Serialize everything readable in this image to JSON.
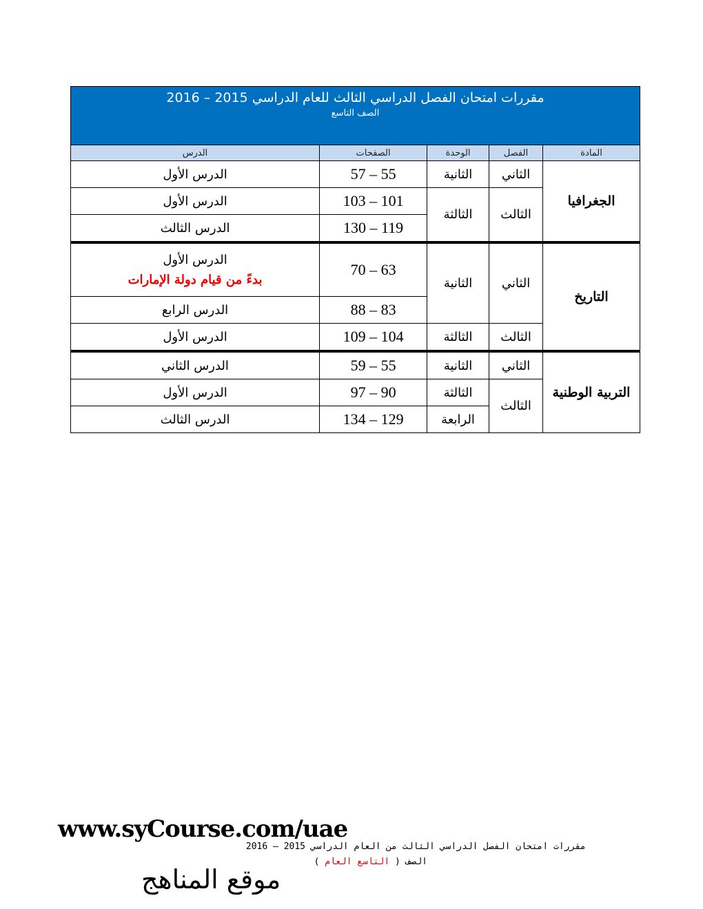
{
  "header": {
    "title": "مقررات امتحان الفصل الدراسي الثالث للعام الدراسي 2015 – 2016",
    "grade": "الصف التاسع"
  },
  "columns": [
    "المادة",
    "الفصل",
    "الوحدة",
    "الصفحات",
    "الدرس"
  ],
  "geo": {
    "subject": "الجغرافيا",
    "r1": {
      "term": "الثاني",
      "unit": "الثانية",
      "pages": "57 – 55",
      "lesson": "الدرس الأول"
    },
    "term2": "الثالث",
    "unit2": "الثالثة",
    "r2": {
      "pages": "103 – 101",
      "lesson": "الدرس الأول"
    },
    "r3": {
      "pages": "130 – 119",
      "lesson": "الدرس الثالث"
    }
  },
  "hist": {
    "subject": "التاريخ",
    "term1": "الثاني",
    "unit1": "الثانية",
    "r1": {
      "pages": "70 – 63",
      "lesson": "الدرس الأول",
      "note": "بدءً من قيام دولة الإمارات"
    },
    "r2": {
      "pages": "88 – 83",
      "lesson": "الدرس الرابع"
    },
    "r3": {
      "term": "الثالث",
      "unit": "الثالثة",
      "pages": "109 – 104",
      "lesson": "الدرس الأول"
    }
  },
  "civ": {
    "subject": "التربية الوطنية",
    "r1": {
      "term": "الثاني",
      "unit": "الثانية",
      "pages": "59 – 55",
      "lesson": "الدرس الثاني"
    },
    "term2": "الثالث",
    "r2": {
      "unit": "الثالثة",
      "pages": "97 – 90",
      "lesson": "الدرس الأول"
    },
    "r3": {
      "unit": "الرابعة",
      "pages": "134 – 129",
      "lesson": "الدرس الثالث"
    }
  },
  "colors": {
    "header_bg": "#0070c0",
    "subheader_bg": "#c5d9f1",
    "note": "#e00000"
  },
  "footer": {
    "url": "www.syCourse.com/uae",
    "line1": "مقررات امتحان الفصل الدراسي الثالث من العام الدراسي 2015 – 2016",
    "line2_prefix": "الصف (",
    "line2_red": "التاسع العام",
    "line2_suffix": ")",
    "logo": "موقع المناهج"
  }
}
